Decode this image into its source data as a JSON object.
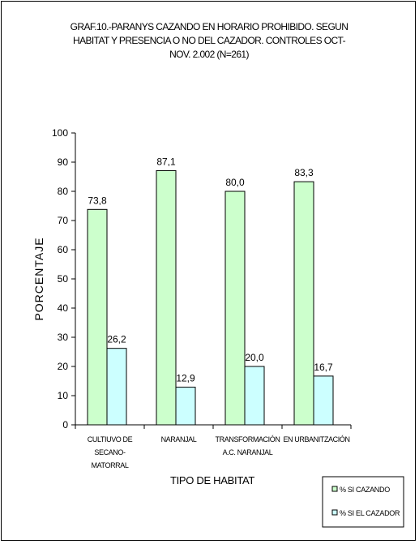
{
  "chart_data": {
    "type": "bar",
    "title": [
      "GRAF.10.-PARANYS CAZANDO EN HORARIO PROHIBIDO. SEGUN",
      "HABITAT Y PRESENCIA O NO DEL CAZADOR. CONTROLES OCT-",
      "NOV. 2.002 (N=261)"
    ],
    "xlabel": "TIPO DE HABITAT",
    "ylabel": "PORCENTAJE",
    "ylim": [
      0,
      100
    ],
    "yticks": [
      0,
      10,
      20,
      30,
      40,
      50,
      60,
      70,
      80,
      90,
      100
    ],
    "categories": [
      [
        "CULTIUVO DE",
        "SECANO-",
        "MATORRAL"
      ],
      [
        "NARANJAL"
      ],
      [
        "TRANSFORMACIÓN",
        "A.C. NARANJAL"
      ],
      [
        "EN URBANITZACIÓN"
      ]
    ],
    "series": [
      {
        "name": "% SI CAZANDO",
        "color": "#ccffcc",
        "values": [
          73.8,
          87.1,
          80.0,
          83.3
        ],
        "labels": [
          "73,8",
          "87,1",
          "80,0",
          "83,3"
        ]
      },
      {
        "name": "% SI EL CAZADOR",
        "color": "#ccffff",
        "values": [
          26.2,
          12.9,
          20.0,
          16.7
        ],
        "labels": [
          "26,2",
          "12,9",
          "20,0",
          "16,7"
        ]
      }
    ],
    "legend": "bottom-right",
    "grid": false
  }
}
